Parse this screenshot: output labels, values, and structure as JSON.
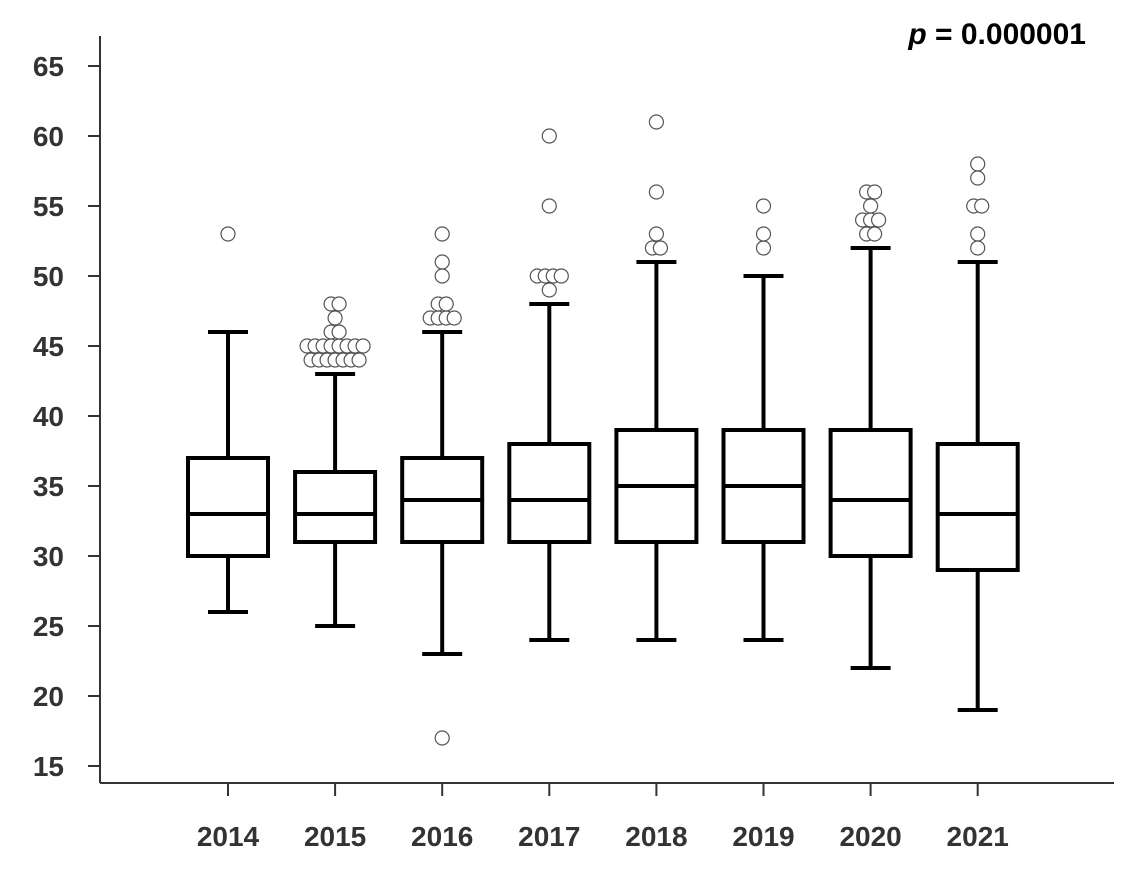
{
  "chart_data": {
    "type": "boxplot",
    "annotation": {
      "symbol": "p",
      "text": " = 0.000001"
    },
    "categories": [
      "2014",
      "2015",
      "2016",
      "2017",
      "2018",
      "2019",
      "2020",
      "2021"
    ],
    "ylim": [
      14,
      66
    ],
    "yticks": [
      15,
      20,
      25,
      30,
      35,
      40,
      45,
      50,
      55,
      60,
      65
    ],
    "grid": false,
    "boxes": [
      {
        "label": "2014",
        "whisker_low": 26,
        "q1": 30,
        "median": 33,
        "q3": 37,
        "whisker_high": 46,
        "outliers": [
          53
        ]
      },
      {
        "label": "2015",
        "whisker_low": 25,
        "q1": 31,
        "median": 33,
        "q3": 36,
        "whisker_high": 43,
        "outliers": [
          44,
          44,
          44,
          44,
          44,
          44,
          44,
          45,
          45,
          45,
          45,
          45,
          45,
          45,
          45,
          46,
          46,
          47,
          48,
          48
        ]
      },
      {
        "label": "2016",
        "whisker_low": 23,
        "q1": 31,
        "median": 34,
        "q3": 37,
        "whisker_high": 46,
        "outliers": [
          17,
          47,
          47,
          47,
          47,
          48,
          48,
          50,
          51,
          53
        ]
      },
      {
        "label": "2017",
        "whisker_low": 24,
        "q1": 31,
        "median": 34,
        "q3": 38,
        "whisker_high": 48,
        "outliers": [
          49,
          50,
          50,
          50,
          50,
          55,
          60
        ]
      },
      {
        "label": "2018",
        "whisker_low": 24,
        "q1": 31,
        "median": 35,
        "q3": 39,
        "whisker_high": 51,
        "outliers": [
          52,
          52,
          53,
          56,
          61
        ]
      },
      {
        "label": "2019",
        "whisker_low": 24,
        "q1": 31,
        "median": 35,
        "q3": 39,
        "whisker_high": 50,
        "outliers": [
          52,
          53,
          55
        ]
      },
      {
        "label": "2020",
        "whisker_low": 22,
        "q1": 30,
        "median": 34,
        "q3": 39,
        "whisker_high": 52,
        "outliers": [
          53,
          53,
          54,
          54,
          54,
          55,
          56,
          56
        ]
      },
      {
        "label": "2021",
        "whisker_low": 19,
        "q1": 29,
        "median": 33,
        "q3": 38,
        "whisker_high": 51,
        "outliers": [
          52,
          53,
          55,
          55,
          57,
          58
        ]
      }
    ]
  }
}
